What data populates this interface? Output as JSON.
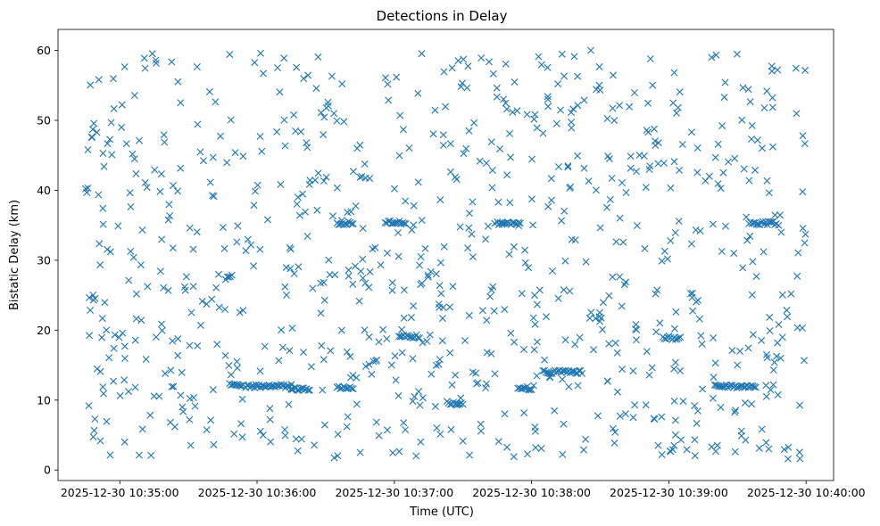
{
  "chart_data": {
    "type": "scatter",
    "title": "Detections in Delay",
    "xlabel": "Time (UTC)",
    "ylabel": "Bistatic Delay (km)",
    "marker": "x",
    "color": "#1f77b4",
    "x_start": "2025-12-30 10:34:45",
    "x_end": "2025-12-30 10:40:00",
    "xlim": [
      "2025-12-30 10:34:33",
      "2025-12-30 10:40:12"
    ],
    "ylim": [
      -1.5,
      63
    ],
    "x_ticks": [
      {
        "value": "2025-12-30 10:35:00",
        "label": "2025-12-30 10:35:00"
      },
      {
        "value": "2025-12-30 10:36:00",
        "label": "2025-12-30 10:36:00"
      },
      {
        "value": "2025-12-30 10:37:00",
        "label": "2025-12-30 10:37:00"
      },
      {
        "value": "2025-12-30 10:38:00",
        "label": "2025-12-30 10:38:00"
      },
      {
        "value": "2025-12-30 10:39:00",
        "label": "2025-12-30 10:39:00"
      },
      {
        "value": "2025-12-30 10:40:00",
        "label": "2025-12-30 10:40:00"
      }
    ],
    "y_ticks": [
      0,
      10,
      20,
      30,
      40,
      50,
      60
    ],
    "grid": false,
    "legend": "none",
    "bands": [
      {
        "t0": "2025-12-30 10:35:47",
        "t1": "2025-12-30 10:35:49",
        "delay": 27.8
      },
      {
        "t0": "2025-12-30 10:35:48",
        "t1": "2025-12-30 10:35:54",
        "delay": 12.2
      },
      {
        "t0": "2025-12-30 10:35:55",
        "t1": "2025-12-30 10:36:15",
        "delay": 12.0
      },
      {
        "t0": "2025-12-30 10:36:15",
        "t1": "2025-12-30 10:36:23",
        "delay": 11.6
      },
      {
        "t0": "2025-12-30 10:36:35",
        "t1": "2025-12-30 10:36:42",
        "delay": 11.8
      },
      {
        "t0": "2025-12-30 10:36:35",
        "t1": "2025-12-30 10:36:42",
        "delay": 35.3
      },
      {
        "t0": "2025-12-30 10:36:56",
        "t1": "2025-12-30 10:37:05",
        "delay": 35.4
      },
      {
        "t0": "2025-12-30 10:37:02",
        "t1": "2025-12-30 10:37:11",
        "delay": 19.1
      },
      {
        "t0": "2025-12-30 10:37:23",
        "t1": "2025-12-30 10:37:30",
        "delay": 9.6
      },
      {
        "t0": "2025-12-30 10:37:45",
        "t1": "2025-12-30 10:37:55",
        "delay": 35.3
      },
      {
        "t0": "2025-12-30 10:37:54",
        "t1": "2025-12-30 10:38:00",
        "delay": 11.7
      },
      {
        "t0": "2025-12-30 10:38:05",
        "t1": "2025-12-30 10:38:22",
        "delay": 14.0
      },
      {
        "t0": "2025-12-30 10:38:58",
        "t1": "2025-12-30 10:39:05",
        "delay": 18.9
      },
      {
        "t0": "2025-12-30 10:39:20",
        "t1": "2025-12-30 10:39:38",
        "delay": 12.0
      },
      {
        "t0": "2025-12-30 10:39:35",
        "t1": "2025-12-30 10:39:47",
        "delay": 35.3
      }
    ]
  }
}
